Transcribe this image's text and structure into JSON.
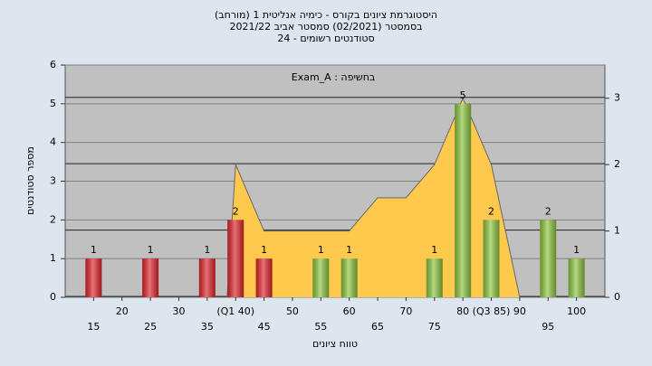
{
  "chart_data": {
    "type": "bar",
    "title": "היסטוגרמת ציונים בקורס - כימיה אנליטית 1 (מורחב)",
    "subtitle": "בסמסטר  (02/2021)  סמסטר אביב 2021/22",
    "subtitle2": "24 - סטודנטים רשומים",
    "annotation": "Exam_A : בחשיפה",
    "xlabel": "טווח ציונים",
    "ylabel": "מספר סטודנטים",
    "x": [
      15,
      25,
      35,
      40,
      45,
      55,
      60,
      75,
      80,
      85,
      95,
      100
    ],
    "values": [
      1,
      1,
      1,
      2,
      1,
      1,
      1,
      1,
      5,
      2,
      2,
      1
    ],
    "colors": [
      "#e0262c",
      "#e0262c",
      "#e0262c",
      "#e0262c",
      "#e0262c",
      "#8dc63f",
      "#8dc63f",
      "#8dc63f",
      "#8dc63f",
      "#8dc63f",
      "#8dc63f",
      "#8dc63f"
    ],
    "curve": {
      "x": [
        38.5,
        40,
        45,
        50,
        55,
        60,
        65,
        70,
        75,
        80,
        85,
        90
      ],
      "values": [
        0,
        2,
        1,
        1,
        1,
        1,
        1.5,
        1.5,
        2,
        3,
        2,
        0
      ],
      "color": "#ffc94d",
      "axis": "y2"
    },
    "xlim": [
      10,
      105
    ],
    "xticks": [
      15,
      20,
      25,
      30,
      35,
      {
        "value": 40,
        "label": "(Q1 40)"
      },
      45,
      50,
      55,
      60,
      65,
      70,
      75,
      80,
      {
        "value": 85,
        "label": "(Q3 85)"
      },
      90,
      95,
      100
    ],
    "ylim": [
      0,
      6
    ],
    "yticks": [
      0,
      1,
      2,
      3,
      4,
      5,
      6
    ],
    "y2lim": [
      0,
      3.5
    ],
    "y2ticks": [
      0,
      1,
      2,
      3
    ],
    "grid": true
  }
}
